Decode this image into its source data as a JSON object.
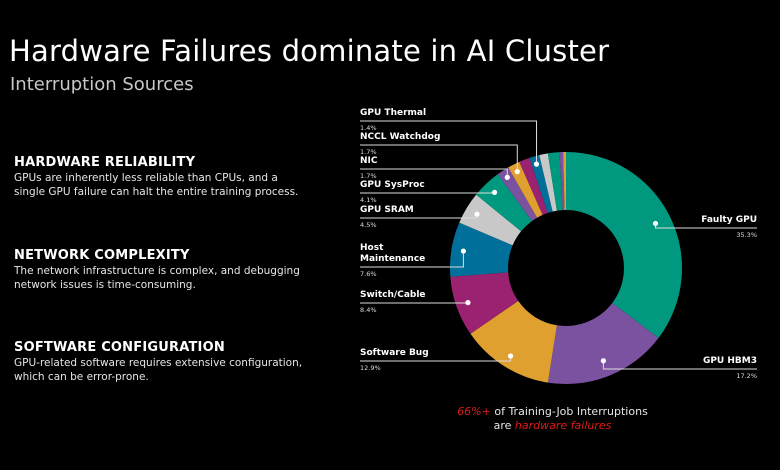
{
  "title": "Hardware Failures dominate in AI Cluster",
  "subtitle": "Interruption Sources",
  "sections": [
    {
      "heading": "HARDWARE RELIABILITY",
      "text": "GPUs are inherently less reliable than CPUs, and a single GPU failure can halt the entire training process."
    },
    {
      "heading": "NETWORK COMPLEXITY",
      "text": "The network infrastructure is complex, and debugging network issues is time-consuming."
    },
    {
      "heading": "SOFTWARE CONFIGURATION",
      "text": "GPU-related software requires extensive configuration, which can be error-prone."
    }
  ],
  "footer": {
    "highlight": "66%+",
    "line1": " of Training-Job Interruptions",
    "line2_prefix": "are ",
    "line2_highlight": "hardware failures"
  },
  "colors": {
    "accent_red": "#e01a1a",
    "teal": "#00997f",
    "purple": "#7b52a0",
    "orange": "#e0a030",
    "magenta": "#9a2270",
    "blue": "#00709a",
    "gray": "#c8c8c8"
  },
  "chart_data": {
    "type": "pie",
    "donut": true,
    "start": "top",
    "direction": "clockwise",
    "slices": [
      {
        "label": "Faulty GPU",
        "value": 35.3,
        "pct_text": "35.3%",
        "color": "#00997f"
      },
      {
        "label": "GPU HBM3",
        "value": 17.2,
        "pct_text": "17.2%",
        "color": "#7b52a0"
      },
      {
        "label": "Software Bug",
        "value": 12.9,
        "pct_text": "12.9%",
        "color": "#e0a030"
      },
      {
        "label": "Switch/Cable",
        "value": 8.4,
        "pct_text": "8.4%",
        "color": "#9a2270"
      },
      {
        "label": "Host Maintenance",
        "value": 7.6,
        "pct_text": "7.6%",
        "color": "#00709a"
      },
      {
        "label": "GPU SRAM",
        "value": 4.5,
        "pct_text": "4.5%",
        "color": "#c8c8c8"
      },
      {
        "label": "GPU SysProc",
        "value": 4.1,
        "pct_text": "4.1%",
        "color": "#00997f"
      },
      {
        "label": "NIC",
        "value": 1.7,
        "pct_text": "1.7%",
        "color": "#7b52a0"
      },
      {
        "label": "NCCL Watchdog",
        "value": 1.7,
        "pct_text": "1.7%",
        "color": "#e0a030"
      },
      {
        "label": "",
        "value": 1.5,
        "color": "#9a2270"
      },
      {
        "label": "GPU Thermal",
        "value": 1.4,
        "pct_text": "1.4%",
        "color": "#00709a"
      },
      {
        "label": "",
        "value": 1.2,
        "color": "#c8c8c8"
      },
      {
        "label": "",
        "value": 1.6,
        "color": "#00997f"
      },
      {
        "label": "",
        "value": 0.5,
        "color": "#7b52a0"
      },
      {
        "label": "",
        "value": 0.4,
        "color": "#e0a030"
      }
    ]
  }
}
